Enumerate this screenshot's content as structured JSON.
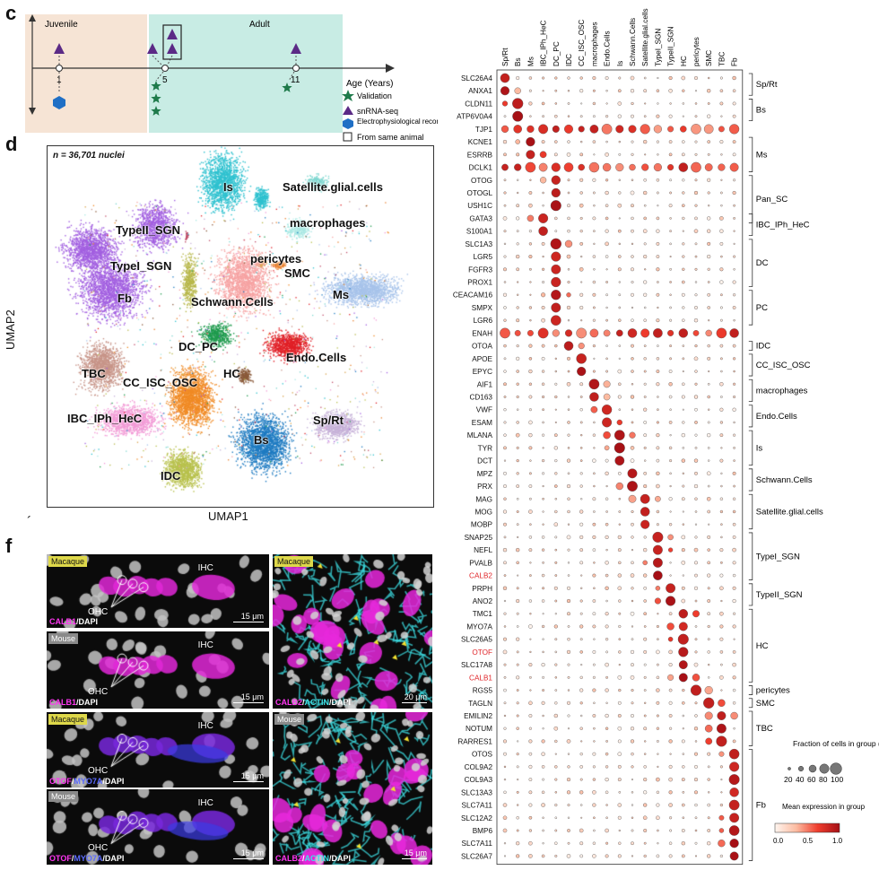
{
  "panels": {
    "c": "c",
    "d": "d",
    "f": "f",
    "prime": "´"
  },
  "timeline": {
    "juvenile": "Juvenile",
    "adult": "Adult",
    "axis_label": "Age (Years)",
    "ticks": [
      "1",
      "5",
      "11"
    ],
    "legend": [
      {
        "label": "Validation",
        "symbol": "star",
        "color": "#1e7a4a"
      },
      {
        "label": "snRNA-seq",
        "symbol": "triangle",
        "color": "#5b2a86"
      },
      {
        "label": "Electrophysiological recording",
        "symbol": "hexagon",
        "color": "#1f6fc5"
      },
      {
        "label": "From same animal",
        "symbol": "box",
        "color": "#222222"
      }
    ],
    "colors": {
      "juvenile_bg": "#f6e4d5",
      "adult_bg": "#c8ece4"
    }
  },
  "umap": {
    "nuclei_label": "n = 36,701 nuclei",
    "xlabel": "UMAP1",
    "ylabel": "UMAP2",
    "clusters": [
      {
        "name": "Is",
        "color": "#2ec1cf"
      },
      {
        "name": "Satellite.glial.cells",
        "color": "#7fd7d0"
      },
      {
        "name": "macrophages",
        "color": "#a9e8e3"
      },
      {
        "name": "pericytes",
        "color": "#d9a24a"
      },
      {
        "name": "SMC",
        "color": "#e8812f"
      },
      {
        "name": "TypeII_SGN",
        "color": "#c14e6a"
      },
      {
        "name": "TypeI_SGN",
        "color": "#b7b74a"
      },
      {
        "name": "Fb",
        "color": "#a25fe0"
      },
      {
        "name": "Schwann.Cells",
        "color": "#f6a3a3"
      },
      {
        "name": "Ms",
        "color": "#a7c3ea"
      },
      {
        "name": "DC_PC",
        "color": "#1e9a4d"
      },
      {
        "name": "HC",
        "color": "#8a5a3a"
      },
      {
        "name": "Endo.Cells",
        "color": "#e01f26"
      },
      {
        "name": "TBC",
        "color": "#c79488"
      },
      {
        "name": "CC_ISC_OSC",
        "color": "#f08a24"
      },
      {
        "name": "IBC_IPh_HeC",
        "color": "#f29bd6"
      },
      {
        "name": "Sp/Rt",
        "color": "#c6b1d8"
      },
      {
        "name": "Bs",
        "color": "#1d7ac1"
      },
      {
        "name": "IDC",
        "color": "#b8c14d"
      }
    ]
  },
  "dotplot": {
    "columns": [
      "Sp/Rt",
      "Bs",
      "Ms",
      "IBC_IPh_HeC",
      "DC_PC",
      "IDC",
      "CC_ISC_OSC",
      "macrophages",
      "Endo.Cells",
      "Is",
      "Schwann.Cells",
      "Satellite.glial.cells",
      "TypeI_SGN",
      "TypeII_SGN",
      "HC",
      "pericytes",
      "SMC",
      "TBC",
      "Fb"
    ],
    "genes": [
      "SLC26A4",
      "ANXA1",
      "CLDN11",
      "ATP6V0A4",
      "TJP1",
      "KCNE1",
      "ESRRB",
      "DCLK1",
      "OTOG",
      "OTOGL",
      "USH1C",
      "GATA3",
      "S100A1",
      "SLC1A3",
      "LGR5",
      "FGFR3",
      "PROX1",
      "CEACAM16",
      "SMPX",
      "LGR6",
      "ENAH",
      "OTOA",
      "APOE",
      "EPYC",
      "AIF1",
      "CD163",
      "VWF",
      "ESAM",
      "MLANA",
      "TYR",
      "DCT",
      "MPZ",
      "PRX",
      "MAG",
      "MOG",
      "MOBP",
      "SNAP25",
      "NEFL",
      "PVALB",
      "CALB2",
      "PRPH",
      "ANO2",
      "TMC1",
      "MYO7A",
      "SLC26A5",
      "OTOF",
      "SLC17A8",
      "CALB1",
      "RGS5",
      "TAGLN",
      "EMILIN2",
      "NOTUM",
      "RARRES1",
      "OTOS",
      "COL9A2",
      "COL9A3",
      "SLC13A3",
      "SLC7A11",
      "SLC12A2",
      "BMP6",
      "SLC7A11",
      "SLC26A7"
    ],
    "highlighted_genes": [
      "CALB2",
      "OTOF",
      "CALB1"
    ],
    "groups": [
      {
        "label": "Sp/Rt",
        "start": 0,
        "end": 1
      },
      {
        "label": "Bs",
        "start": 2,
        "end": 3
      },
      {
        "label": "Ms",
        "start": 5,
        "end": 7
      },
      {
        "label": "Pan_SC",
        "start": 8,
        "end": 11
      },
      {
        "label": "IBC_IPh_HeC",
        "start": 11,
        "end": 12
      },
      {
        "label": "DC",
        "start": 13,
        "end": 16
      },
      {
        "label": "PC",
        "start": 17,
        "end": 19
      },
      {
        "label": "IDC",
        "start": 21,
        "end": 21
      },
      {
        "label": "CC_ISC_OSC",
        "start": 22,
        "end": 23
      },
      {
        "label": "macrophages",
        "start": 24,
        "end": 25
      },
      {
        "label": "Endo.Cells",
        "start": 26,
        "end": 27
      },
      {
        "label": "Is",
        "start": 28,
        "end": 30
      },
      {
        "label": "Schwann.Cells",
        "start": 31,
        "end": 32
      },
      {
        "label": "Satellite.glial.cells",
        "start": 33,
        "end": 35
      },
      {
        "label": "TypeI_SGN",
        "start": 36,
        "end": 39
      },
      {
        "label": "TypeII_SGN",
        "start": 40,
        "end": 41
      },
      {
        "label": "HC",
        "start": 42,
        "end": 47
      },
      {
        "label": "pericytes",
        "start": 48,
        "end": 48
      },
      {
        "label": "SMC",
        "start": 49,
        "end": 49
      },
      {
        "label": "TBC",
        "start": 50,
        "end": 52
      },
      {
        "label": "Fb",
        "start": 53,
        "end": 61
      }
    ],
    "size_legend": {
      "title": "Fraction of cells in group (%)",
      "ticks": [
        "20",
        "40",
        "60",
        "80",
        "100"
      ]
    },
    "color_legend": {
      "title": "Mean expression in group",
      "ticks": [
        "0.0",
        "0.5",
        "1.0"
      ],
      "low": "#fff5ef",
      "high": "#a50f15"
    }
  },
  "microscopy": [
    {
      "species": "Macaque",
      "stain": [
        {
          "text": "CALB1",
          "color": "#ff36f2"
        },
        {
          "text": "/DAPI",
          "color": "#ffffff"
        }
      ],
      "scale": "15 μm",
      "ihc": "IHC",
      "ohc": "OHC"
    },
    {
      "species": "Mouse",
      "stain": [
        {
          "text": "CALB1",
          "color": "#ff36f2"
        },
        {
          "text": "/DAPI",
          "color": "#ffffff"
        }
      ],
      "scale": "15 μm",
      "ihc": "IHC",
      "ohc": "OHC"
    },
    {
      "species": "Macaque",
      "stain": [
        {
          "text": "OTOF",
          "color": "#ff36f2"
        },
        {
          "text": "/",
          "color": "#ffffff"
        },
        {
          "text": "MYO7A",
          "color": "#5b6bff"
        },
        {
          "text": "/DAPI",
          "color": "#ffffff"
        }
      ],
      "scale": "15 μm",
      "ihc": "IHC",
      "ohc": "OHC"
    },
    {
      "species": "Mouse",
      "stain": [
        {
          "text": "OTOF",
          "color": "#ff36f2"
        },
        {
          "text": "/",
          "color": "#ffffff"
        },
        {
          "text": "MYO7A",
          "color": "#5b6bff"
        },
        {
          "text": "/DAPI",
          "color": "#ffffff"
        }
      ],
      "scale": "15 μm",
      "ihc": "IHC",
      "ohc": "OHC"
    },
    {
      "species": "Macaque",
      "stain": [
        {
          "text": "CALB2",
          "color": "#ff36f2"
        },
        {
          "text": "/",
          "color": "#ffffff"
        },
        {
          "text": "ACTIN",
          "color": "#3fe3e8"
        },
        {
          "text": "/DAPI",
          "color": "#ffffff"
        }
      ],
      "scale": "20 μm"
    },
    {
      "species": "Mouse",
      "stain": [
        {
          "text": "CALB2",
          "color": "#ff36f2"
        },
        {
          "text": "/",
          "color": "#ffffff"
        },
        {
          "text": "ACTIN",
          "color": "#3fe3e8"
        },
        {
          "text": "/DAPI",
          "color": "#ffffff"
        }
      ],
      "scale": "15 μm"
    }
  ]
}
